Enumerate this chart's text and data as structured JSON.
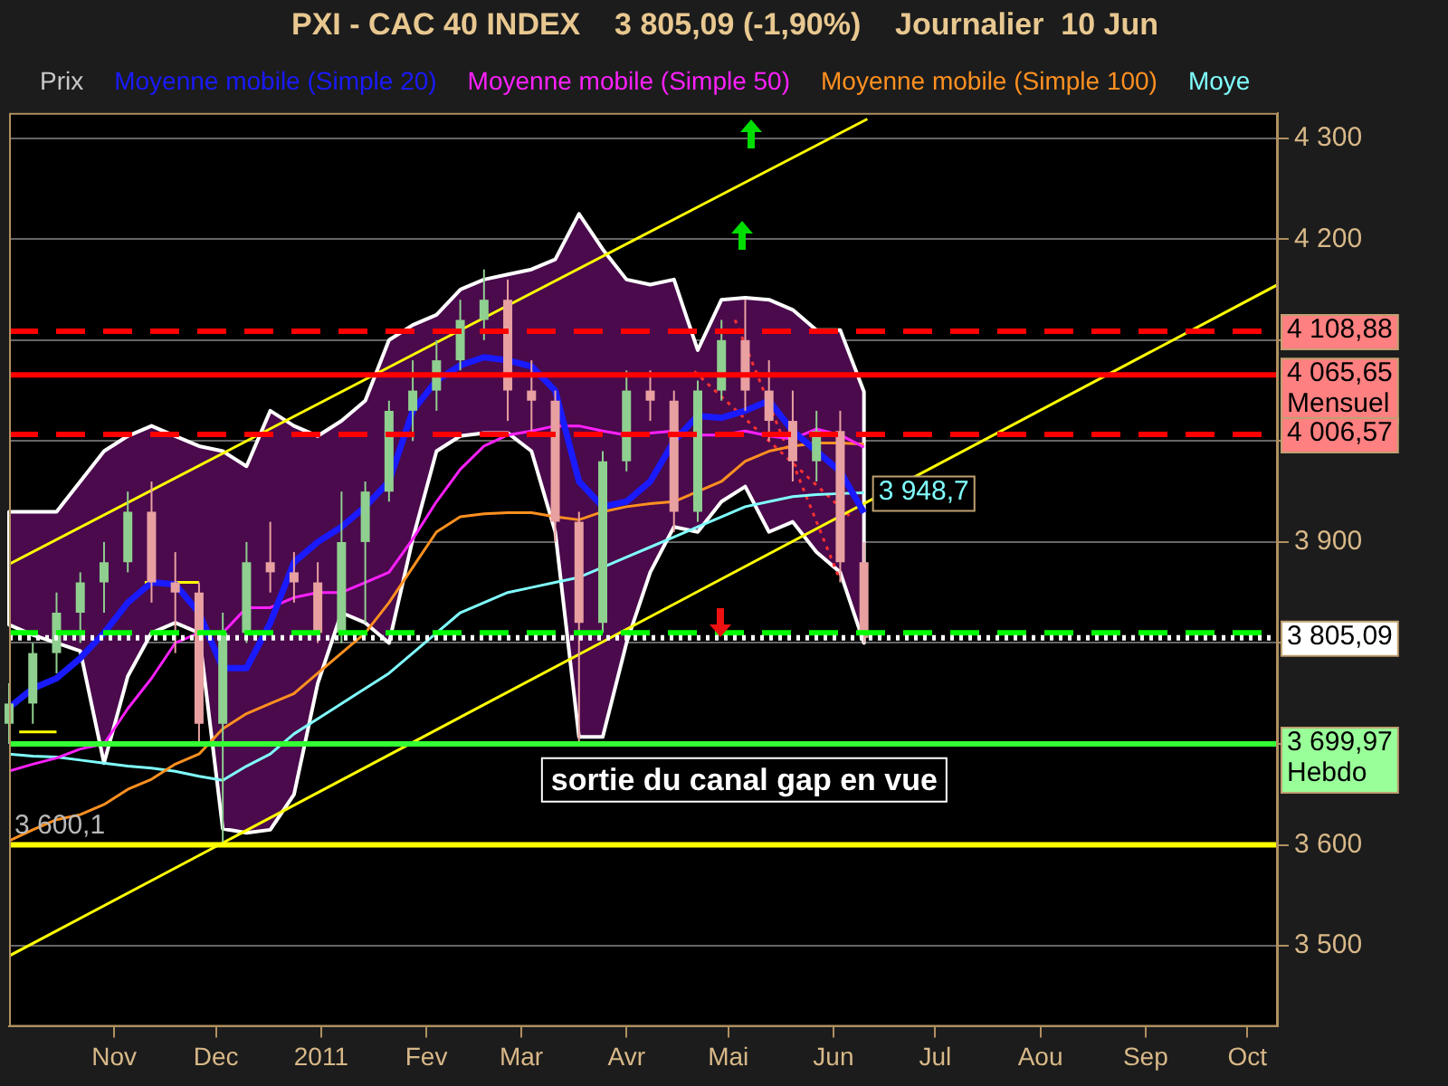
{
  "chart_data": {
    "type": "candlestick",
    "title": "PXI - CAC 40 INDEX    3 805,09 (-1,90%)    Journalier  10 Jun",
    "x": [
      "2010-10-01",
      "2010-10-08",
      "2010-10-15",
      "2010-10-22",
      "2010-10-29",
      "2010-11-05",
      "2010-11-12",
      "2010-11-19",
      "2010-11-26",
      "2010-12-03",
      "2010-12-10",
      "2010-12-17",
      "2010-12-24",
      "2010-12-31",
      "2011-01-07",
      "2011-01-14",
      "2011-01-21",
      "2011-01-28",
      "2011-02-04",
      "2011-02-11",
      "2011-02-18",
      "2011-02-25",
      "2011-03-04",
      "2011-03-11",
      "2011-03-18",
      "2011-03-25",
      "2011-04-01",
      "2011-04-08",
      "2011-04-15",
      "2011-04-22",
      "2011-04-29",
      "2011-05-06",
      "2011-05-13",
      "2011-05-20",
      "2011-05-27",
      "2011-06-03",
      "2011-06-10"
    ],
    "series": [
      {
        "name": "Prix",
        "type": "candlestick",
        "color": "#c8c8c8",
        "ohlc": [
          [
            3720,
            3760,
            3700,
            3740
          ],
          [
            3740,
            3800,
            3720,
            3790
          ],
          [
            3790,
            3850,
            3770,
            3830
          ],
          [
            3830,
            3870,
            3800,
            3860
          ],
          [
            3860,
            3900,
            3830,
            3880
          ],
          [
            3880,
            3950,
            3870,
            3930
          ],
          [
            3930,
            3960,
            3840,
            3860
          ],
          [
            3860,
            3890,
            3790,
            3850
          ],
          [
            3850,
            3860,
            3700,
            3720
          ],
          [
            3720,
            3830,
            3601,
            3810
          ],
          [
            3810,
            3900,
            3800,
            3880
          ],
          [
            3880,
            3920,
            3850,
            3870
          ],
          [
            3870,
            3890,
            3840,
            3860
          ],
          [
            3860,
            3880,
            3800,
            3810
          ],
          [
            3810,
            3950,
            3800,
            3900
          ],
          [
            3900,
            3960,
            3820,
            3950
          ],
          [
            3950,
            4040,
            3940,
            4030
          ],
          [
            4030,
            4080,
            4000,
            4050
          ],
          [
            4050,
            4100,
            4030,
            4080
          ],
          [
            4080,
            4140,
            4070,
            4120
          ],
          [
            4120,
            4170,
            4100,
            4140
          ],
          [
            4140,
            4160,
            4020,
            4050
          ],
          [
            4050,
            4080,
            4010,
            4040
          ],
          [
            4040,
            4050,
            3900,
            3920
          ],
          [
            3920,
            3930,
            3700,
            3820
          ],
          [
            3820,
            3990,
            3810,
            3980
          ],
          [
            3980,
            4070,
            3970,
            4050
          ],
          [
            4050,
            4070,
            4020,
            4040
          ],
          [
            4040,
            4050,
            3910,
            3930
          ],
          [
            3930,
            4060,
            3920,
            4050
          ],
          [
            4050,
            4120,
            4040,
            4100
          ],
          [
            4100,
            4140,
            4030,
            4050
          ],
          [
            4050,
            4080,
            4000,
            4020
          ],
          [
            4020,
            4050,
            3960,
            3980
          ],
          [
            3980,
            4030,
            3960,
            4010
          ],
          [
            4010,
            4030,
            3860,
            3880
          ],
          [
            3880,
            3900,
            3800,
            3805.09
          ]
        ],
        "colors": [
          "#8fcf8f",
          "#8fcf8f",
          "#8fcf8f",
          "#8fcf8f",
          "#8fcf8f",
          "#8fcf8f",
          "#e8a0a0",
          "#e8a0a0",
          "#e8a0a0",
          "#8fcf8f",
          "#8fcf8f",
          "#e8a0a0",
          "#e8a0a0",
          "#e8a0a0",
          "#8fcf8f",
          "#8fcf8f",
          "#8fcf8f",
          "#8fcf8f",
          "#8fcf8f",
          "#8fcf8f",
          "#8fcf8f",
          "#e8a0a0",
          "#e8a0a0",
          "#e8a0a0",
          "#e8a0a0",
          "#8fcf8f",
          "#8fcf8f",
          "#e8a0a0",
          "#e8a0a0",
          "#8fcf8f",
          "#8fcf8f",
          "#e8a0a0",
          "#e8a0a0",
          "#e8a0a0",
          "#8fcf8f",
          "#e8a0a0",
          "#e8a0a0"
        ]
      },
      {
        "name": "Moyenne mobile (Simple 20)",
        "type": "line",
        "color": "#1a1aff",
        "values": [
          3736,
          3755,
          3765,
          3785,
          3810,
          3840,
          3860,
          3858,
          3830,
          3775,
          3775,
          3820,
          3880,
          3900,
          3915,
          3935,
          3960,
          4030,
          4060,
          4075,
          4083,
          4080,
          4074,
          4050,
          3960,
          3935,
          3940,
          3960,
          4000,
          4025,
          4023,
          4030,
          4040,
          4010,
          3990,
          3970,
          3929
        ],
        "upper": [
          3930,
          3930,
          3930,
          3960,
          3990,
          4005,
          4015,
          4005,
          3995,
          3990,
          3975,
          4030,
          4015,
          4005,
          4020,
          4040,
          4100,
          4115,
          4125,
          4150,
          4160,
          4165,
          4170,
          4180,
          4225,
          4190,
          4160,
          4155,
          4160,
          4090,
          4140,
          4142,
          4140,
          4130,
          4110,
          4110,
          4049
        ],
        "lower": [
          3818,
          3808,
          3800,
          3792,
          3681,
          3767,
          3810,
          3820,
          3810,
          3616,
          3612,
          3615,
          3650,
          3760,
          3830,
          3820,
          3800,
          3903,
          3990,
          4005,
          4008,
          4008,
          3990,
          3910,
          3707,
          3707,
          3800,
          3870,
          3915,
          3910,
          3940,
          3955,
          3910,
          3920,
          3890,
          3870,
          3800
        ]
      },
      {
        "name": "Moyenne mobile (Simple 50)",
        "type": "line",
        "color": "#ff20ff",
        "values": [
          3673,
          3680,
          3686,
          3695,
          3700,
          3735,
          3765,
          3800,
          3810,
          3810,
          3835,
          3835,
          3845,
          3850,
          3850,
          3860,
          3870,
          3903,
          3940,
          3972,
          3995,
          4006,
          4010,
          4015,
          4015,
          4010,
          4006,
          4008,
          4010,
          4006,
          4006,
          4010,
          4005,
          4002,
          4012,
          4006,
          3994
        ]
      },
      {
        "name": "Moyenne mobile (Simple 100)",
        "type": "line",
        "color": "#ff9020",
        "values": [
          3604,
          3615,
          3625,
          3630,
          3640,
          3655,
          3665,
          3680,
          3690,
          3715,
          3730,
          3740,
          3750,
          3770,
          3790,
          3810,
          3840,
          3875,
          3910,
          3925,
          3928,
          3929,
          3929,
          3925,
          3922,
          3930,
          3935,
          3938,
          3940,
          3950,
          3960,
          3980,
          3990,
          3995,
          3998,
          3998,
          3997
        ]
      },
      {
        "name": "Moye",
        "type": "line",
        "color": "#80ffff",
        "values": [
          3690,
          3688,
          3687,
          3684,
          3681,
          3678,
          3676,
          3673,
          3668,
          3664,
          3678,
          3690,
          3710,
          3725,
          3740,
          3755,
          3770,
          3790,
          3810,
          3830,
          3840,
          3850,
          3855,
          3860,
          3865,
          3875,
          3885,
          3895,
          3905,
          3915,
          3925,
          3935,
          3940,
          3945,
          3947,
          3948,
          3948.7
        ],
        "value_labels": [
          null,
          null,
          null,
          null,
          null,
          null,
          null,
          null,
          null,
          null,
          null,
          null,
          null,
          null,
          null,
          null,
          null,
          null,
          null,
          null,
          null,
          null,
          null,
          null,
          null,
          null,
          null,
          null,
          null,
          null,
          null,
          null,
          null,
          null,
          null,
          null,
          "3 948,7"
        ]
      },
      {
        "type": "line",
        "color": "#ffff00",
        "x": [
          "2010-10-01",
          "2011-06-11"
        ],
        "values": [
          3878,
          4319
        ]
      },
      {
        "type": "line",
        "color": "#ffff00",
        "x": [
          "2010-10-01",
          "2011-10-10"
        ],
        "values": [
          3490,
          4155
        ]
      },
      {
        "type": "line",
        "color": "#ffff00",
        "x": [
          "2010-11-10",
          "2010-11-26"
        ],
        "values": [
          3860,
          3860
        ]
      },
      {
        "type": "line",
        "color": "#ffff00",
        "x": [
          "2010-10-04",
          "2010-10-15"
        ],
        "values": [
          3712,
          3712
        ]
      },
      {
        "type": "line",
        "color": "#ff3030",
        "line_style": "dotted",
        "x": [
          "2011-05-03",
          "2011-06-03"
        ],
        "values": [
          4120,
          3862
        ]
      },
      {
        "type": "line",
        "color": "#ff3030",
        "line_style": "dotted",
        "x": [
          "2011-04-21",
          "2011-06-06"
        ],
        "values": [
          4069,
          3925
        ]
      }
    ],
    "xlim": [
      "2010-10-01",
      "2011-10-10"
    ],
    "xticks": [
      {
        "value": "2010-11-01",
        "label": "Nov"
      },
      {
        "value": "2010-12-01",
        "label": "Dec"
      },
      {
        "value": "2011-01-01",
        "label": "2011"
      },
      {
        "value": "2011-02-01",
        "label": "Fev"
      },
      {
        "value": "2011-03-01",
        "label": "Mar"
      },
      {
        "value": "2011-04-01",
        "label": "Avr"
      },
      {
        "value": "2011-05-01",
        "label": "Mai"
      },
      {
        "value": "2011-06-01",
        "label": "Jun"
      },
      {
        "value": "2011-07-01",
        "label": "Jul"
      },
      {
        "value": "2011-08-01",
        "label": "Aou"
      },
      {
        "value": "2011-09-01",
        "label": "Sep"
      },
      {
        "value": "2011-10-01",
        "label": "Oct"
      }
    ],
    "ylim": [
      3420,
      4325
    ],
    "yticks": [
      {
        "value": 3500,
        "label": "3 500"
      },
      {
        "value": 3600,
        "label": "3 600"
      },
      {
        "value": 3700,
        "label": null
      },
      {
        "value": 3800,
        "label": null
      },
      {
        "value": 3900,
        "label": "3 900"
      },
      {
        "value": 4000,
        "label": null
      },
      {
        "value": 4100,
        "label": null
      },
      {
        "value": 4200,
        "label": "4 200"
      },
      {
        "value": 4300,
        "label": "4 300"
      }
    ],
    "grid": "y",
    "legend": "top left",
    "marker": "none",
    "ref_lines": [
      {
        "axis": "y",
        "value": 4108.88,
        "label": "4 108,88",
        "color": "#ff0000",
        "line_style": "dashed"
      },
      {
        "axis": "y",
        "value": 4065.65,
        "label": "4 065,65 Mensuel",
        "color": "#ff0000",
        "line_style": "solid"
      },
      {
        "axis": "y",
        "value": 4006.57,
        "label": "4 006,57",
        "color": "#ff0000",
        "line_style": "dashed"
      },
      {
        "axis": "y",
        "value": 3810,
        "color": "#00ff00",
        "line_style": "dashed"
      },
      {
        "axis": "y",
        "value": 3805.09,
        "label": "3 805,09",
        "color": "#ffffff",
        "line_style": "dotted"
      },
      {
        "axis": "y",
        "value": 3699.97,
        "label": "3 699,97 Hebdo",
        "color": "#33ff33",
        "line_style": "solid"
      },
      {
        "axis": "y",
        "value": 3600.1,
        "label": "3 600,1",
        "color": "#ffff00",
        "line_style": "solid"
      }
    ],
    "annotations": [
      "sortie du canal gap en vue"
    ]
  }
}
